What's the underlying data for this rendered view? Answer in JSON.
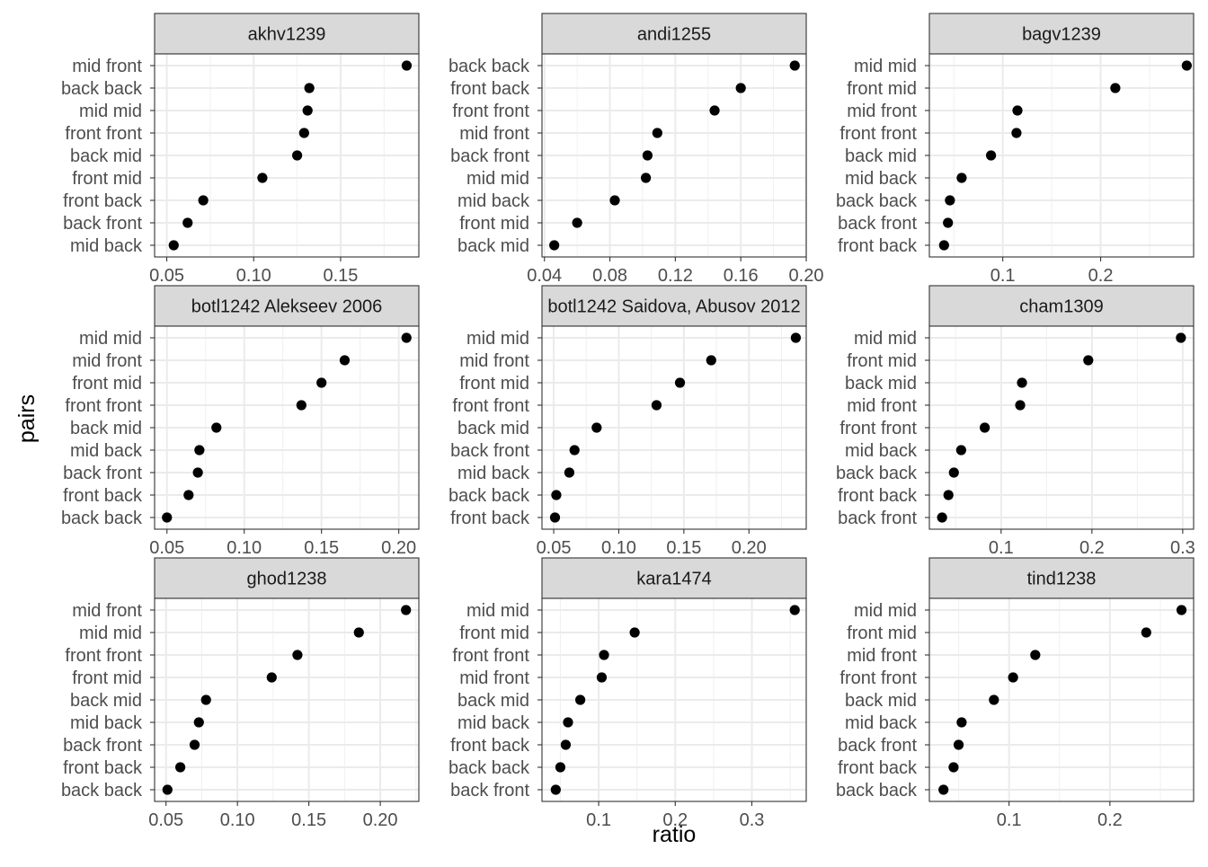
{
  "chart_data": {
    "type": "scatter",
    "xlabel": "ratio",
    "ylabel": "pairs",
    "panels": [
      {
        "title": "akhv1239",
        "xlim": [
          0.043,
          0.195
        ],
        "xticks": [
          0.05,
          0.1,
          0.15
        ],
        "xtick_labels": [
          "0.05",
          "0.10",
          "0.15"
        ],
        "categories": [
          "mid front",
          "back back",
          "mid mid",
          "front front",
          "back mid",
          "front mid",
          "front back",
          "back front",
          "mid back"
        ],
        "values": [
          0.188,
          0.132,
          0.131,
          0.129,
          0.125,
          0.105,
          0.071,
          0.062,
          0.054
        ]
      },
      {
        "title": "andi1255",
        "xlim": [
          0.0385,
          0.2
        ],
        "xticks": [
          0.04,
          0.08,
          0.12,
          0.16,
          0.2
        ],
        "xtick_labels": [
          "0.04",
          "0.08",
          "0.12",
          "0.16",
          "0.20"
        ],
        "categories": [
          "back back",
          "front back",
          "front front",
          "mid front",
          "back front",
          "mid mid",
          "mid back",
          "front mid",
          "back mid"
        ],
        "values": [
          0.193,
          0.16,
          0.144,
          0.109,
          0.103,
          0.102,
          0.083,
          0.06,
          0.046
        ]
      },
      {
        "title": "bagv1239",
        "xlim": [
          0.025,
          0.295
        ],
        "xticks": [
          0.1,
          0.2
        ],
        "xtick_labels": [
          "0.1",
          "0.2"
        ],
        "categories": [
          "mid mid",
          "front mid",
          "mid front",
          "front front",
          "back mid",
          "mid back",
          "back back",
          "back front",
          "front back"
        ],
        "values": [
          0.288,
          0.215,
          0.115,
          0.114,
          0.088,
          0.058,
          0.046,
          0.044,
          0.04
        ]
      },
      {
        "title": "botl1242 Alekseev 2006",
        "xlim": [
          0.042,
          0.213
        ],
        "xticks": [
          0.05,
          0.1,
          0.15,
          0.2
        ],
        "xtick_labels": [
          "0.05",
          "0.10",
          "0.15",
          "0.20"
        ],
        "categories": [
          "mid mid",
          "mid front",
          "front mid",
          "front front",
          "back mid",
          "mid back",
          "back front",
          "front back",
          "back back"
        ],
        "values": [
          0.205,
          0.165,
          0.15,
          0.137,
          0.082,
          0.071,
          0.07,
          0.064,
          0.05
        ]
      },
      {
        "title": "botl1242 Saidova, Abusov 2012",
        "xlim": [
          0.041,
          0.244
        ],
        "xticks": [
          0.05,
          0.1,
          0.15,
          0.2
        ],
        "xtick_labels": [
          "0.05",
          "0.10",
          "0.15",
          "0.20"
        ],
        "categories": [
          "mid mid",
          "mid front",
          "front mid",
          "front front",
          "back mid",
          "back front",
          "mid back",
          "back back",
          "front back"
        ],
        "values": [
          0.236,
          0.171,
          0.147,
          0.129,
          0.083,
          0.066,
          0.062,
          0.052,
          0.051
        ]
      },
      {
        "title": "cham1309",
        "xlim": [
          0.021,
          0.312
        ],
        "xticks": [
          0.1,
          0.2,
          0.3
        ],
        "xtick_labels": [
          "0.1",
          "0.2",
          "0.3"
        ],
        "categories": [
          "mid mid",
          "front mid",
          "back mid",
          "mid front",
          "front front",
          "mid back",
          "back back",
          "front back",
          "back front"
        ],
        "values": [
          0.298,
          0.196,
          0.123,
          0.121,
          0.082,
          0.056,
          0.048,
          0.042,
          0.035
        ]
      },
      {
        "title": "ghod1238",
        "xlim": [
          0.042,
          0.227
        ],
        "xticks": [
          0.05,
          0.1,
          0.15,
          0.2
        ],
        "xtick_labels": [
          "0.05",
          "0.10",
          "0.15",
          "0.20"
        ],
        "categories": [
          "mid front",
          "mid mid",
          "front front",
          "front mid",
          "back mid",
          "mid back",
          "back front",
          "front back",
          "back back"
        ],
        "values": [
          0.218,
          0.185,
          0.142,
          0.124,
          0.078,
          0.073,
          0.07,
          0.06,
          0.051
        ]
      },
      {
        "title": "kara1474",
        "xlim": [
          0.026,
          0.371
        ],
        "xticks": [
          0.1,
          0.2,
          0.3
        ],
        "xtick_labels": [
          "0.1",
          "0.2",
          "0.3"
        ],
        "categories": [
          "mid mid",
          "front mid",
          "front front",
          "mid front",
          "back mid",
          "mid back",
          "front back",
          "back back",
          "back front"
        ],
        "values": [
          0.356,
          0.147,
          0.107,
          0.104,
          0.076,
          0.06,
          0.057,
          0.05,
          0.044
        ]
      },
      {
        "title": "tind1238",
        "xlim": [
          0.021,
          0.283
        ],
        "xticks": [
          0.1,
          0.2
        ],
        "xtick_labels": [
          "0.1",
          "0.2"
        ],
        "categories": [
          "mid mid",
          "front mid",
          "mid front",
          "front front",
          "back mid",
          "mid back",
          "back front",
          "front back",
          "back back"
        ],
        "values": [
          0.271,
          0.236,
          0.126,
          0.104,
          0.085,
          0.053,
          0.05,
          0.045,
          0.035
        ]
      }
    ]
  }
}
